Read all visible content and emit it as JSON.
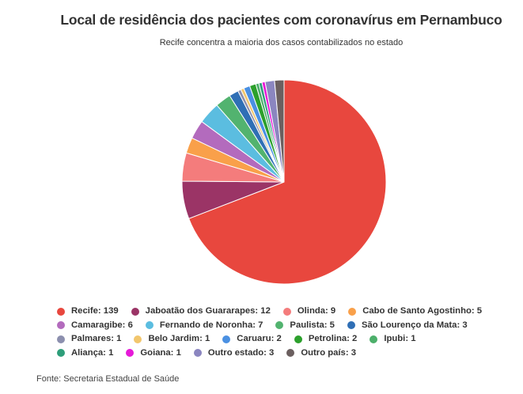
{
  "chart_data": {
    "type": "pie",
    "title": "Local de residência dos pacientes com coronavírus em Pernambuco",
    "subtitle": "Recife concentra a maioria dos casos contabilizados no estado",
    "source": "Fonte: Secretaria Estadual de Saúde",
    "legend_position": "bottom",
    "slices": [
      {
        "label": "Recife",
        "value": 139,
        "color": "#e8473e"
      },
      {
        "label": "Jaboatão dos Guararapes",
        "value": 12,
        "color": "#9b3466"
      },
      {
        "label": "Olinda",
        "value": 9,
        "color": "#f47c7c"
      },
      {
        "label": "Cabo de Santo Agostinho",
        "value": 5,
        "color": "#f9a04a"
      },
      {
        "label": "Camaragibe",
        "value": 6,
        "color": "#b36bbd"
      },
      {
        "label": "Fernando de Noronha",
        "value": 7,
        "color": "#5bbde0"
      },
      {
        "label": "Paulista",
        "value": 5,
        "color": "#52b36f"
      },
      {
        "label": "São Lourenço da Mata",
        "value": 3,
        "color": "#2f6fb5"
      },
      {
        "label": "Palmares",
        "value": 1,
        "color": "#8c8fae"
      },
      {
        "label": "Belo Jardim",
        "value": 1,
        "color": "#f2c66d"
      },
      {
        "label": "Caruaru",
        "value": 2,
        "color": "#4a90e2"
      },
      {
        "label": "Petrolina",
        "value": 2,
        "color": "#2ca02c"
      },
      {
        "label": "Ipubi",
        "value": 1,
        "color": "#4caf6a"
      },
      {
        "label": "Aliança",
        "value": 1,
        "color": "#2e9e7a"
      },
      {
        "label": "Goiana",
        "value": 1,
        "color": "#e619d8"
      },
      {
        "label": "Outro estado",
        "value": 3,
        "color": "#8b86c0"
      },
      {
        "label": "Outro país",
        "value": 3,
        "color": "#6b5f5f"
      }
    ]
  }
}
